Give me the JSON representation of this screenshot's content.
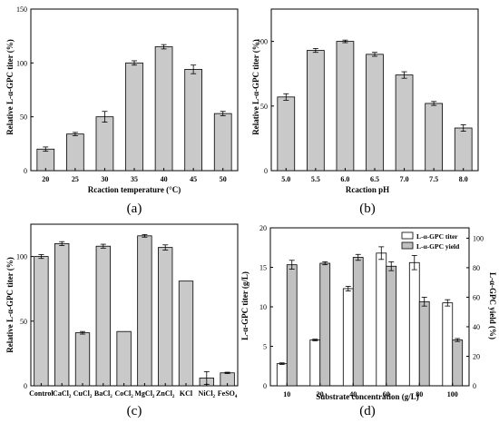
{
  "chart_data": [
    {
      "type": "bar",
      "panel_label": "(a)",
      "categories": [
        "20",
        "25",
        "30",
        "35",
        "40",
        "45",
        "50"
      ],
      "values": [
        20,
        34,
        50,
        100,
        115,
        94,
        53
      ],
      "errors": [
        2,
        1.5,
        5,
        2,
        2,
        4,
        2
      ],
      "xlabel": "Rcaction temperature (°C)",
      "ylabel": "Relative L-α-GPC titer (%)",
      "ylim": [
        0,
        150
      ],
      "yticks": [
        "0",
        "50",
        "100",
        "150"
      ],
      "bar_color": "#c9c9c9"
    },
    {
      "type": "bar",
      "panel_label": "(b)",
      "categories": [
        "5.0",
        "5.5",
        "6.0",
        "6.5",
        "7.0",
        "7.5",
        "8.0"
      ],
      "values": [
        57,
        93,
        100,
        90,
        74,
        52,
        33
      ],
      "errors": [
        2.5,
        1.5,
        1,
        1.5,
        2.5,
        1.5,
        2.5
      ],
      "xlabel": "Rcaction pH",
      "ylabel": "Relative L-α-GPC titer (%)",
      "ylim": [
        0,
        125
      ],
      "yticks": [
        "0",
        "50",
        "100"
      ],
      "bar_color": "#c9c9c9"
    },
    {
      "type": "bar",
      "panel_label": "(c)",
      "categories": [
        "Control",
        "CaCl2",
        "CuCl2",
        "BaCl2",
        "CoCl2",
        "MgCl2",
        "ZnCl2",
        "KCl",
        "NiCl2",
        "FeSO4"
      ],
      "category_labels": [
        {
          "base": "Control",
          "sub": ""
        },
        {
          "base": "CaCl",
          "sub": "2"
        },
        {
          "base": "CuCl",
          "sub": "2"
        },
        {
          "base": "BaCl",
          "sub": "2"
        },
        {
          "base": "CoCl",
          "sub": "2"
        },
        {
          "base": "MgCl",
          "sub": "2"
        },
        {
          "base": "ZnCl",
          "sub": "2"
        },
        {
          "base": "KCl",
          "sub": ""
        },
        {
          "base": "NiCl",
          "sub": "2"
        },
        {
          "base": "FeSO",
          "sub": "4"
        }
      ],
      "values": [
        100,
        110,
        41,
        108,
        42,
        116,
        107,
        81,
        6,
        10
      ],
      "errors": [
        1.5,
        1.5,
        1,
        1.5,
        0,
        1,
        2,
        0,
        5,
        0.5
      ],
      "ylabel": "Relative L-α-GPC titer (%)",
      "ylim": [
        0,
        125
      ],
      "yticks": [
        "0",
        "50",
        "100"
      ],
      "bar_color": "#c9c9c9"
    },
    {
      "type": "bar",
      "panel_label": "(d)",
      "categories": [
        "10",
        "20",
        "40",
        "60",
        "80",
        "100"
      ],
      "series": [
        {
          "name": "L-α-GPC titer",
          "values": [
            2.8,
            5.8,
            12.3,
            16.8,
            15.6,
            10.5
          ],
          "errors": [
            0.1,
            0.1,
            0.3,
            0.8,
            0.9,
            0.4
          ],
          "axis": "left",
          "color": "#ffffff"
        },
        {
          "name": "L-α-GPC yield",
          "values": [
            82,
            83,
            87,
            81,
            57,
            31
          ],
          "errors": [
            3,
            1,
            2,
            3,
            3,
            1
          ],
          "axis": "right",
          "color": "#c0c0c0"
        }
      ],
      "xlabel": "Substrate concentration (g/L)",
      "ylabel": "L-α-GPC titer (g/L)",
      "ylabel_right": "L-α-GPC yield (%)",
      "ylim": [
        0,
        20
      ],
      "ylim_right": [
        0,
        107
      ],
      "yticks": [
        "0",
        "5",
        "10",
        "15",
        "20"
      ],
      "yticks_right": [
        "0",
        "20",
        "40",
        "60",
        "80",
        "100"
      ],
      "legend_position": "top-right"
    }
  ]
}
